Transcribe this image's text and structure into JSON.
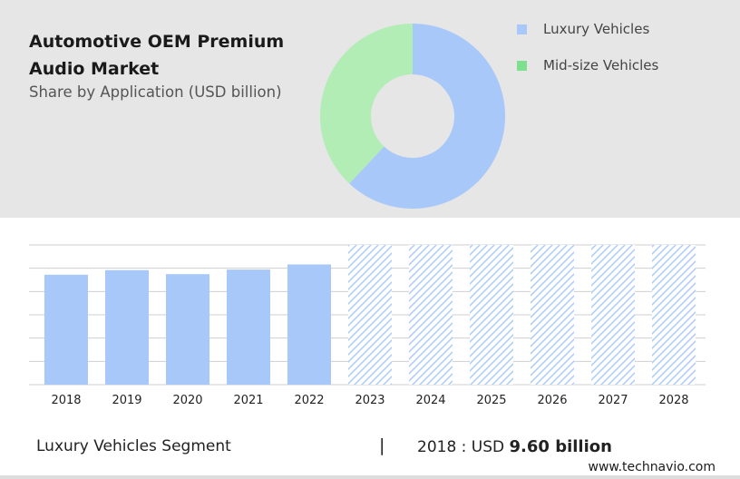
{
  "header": {
    "title": "Automotive OEM Premium Audio Market",
    "subtitle": "Share by Application (USD billion)"
  },
  "legend": [
    {
      "label": "Luxury Vehicles",
      "color": "#a8c8fa"
    },
    {
      "label": "Mid-size Vehicles",
      "color": "#7ee08e"
    }
  ],
  "footer": {
    "segment": "Luxury Vehicles Segment",
    "separator": "|",
    "year_label": "2018 : USD",
    "value": "9.60 billion",
    "site": "www.technavio.com"
  },
  "chart_data": [
    {
      "type": "pie",
      "donut": true,
      "labels": [
        "Luxury Vehicles",
        "Mid-size Vehicles"
      ],
      "values": [
        62,
        38
      ],
      "colors": [
        "#a8c8fa",
        "#b2edb5"
      ]
    },
    {
      "type": "bar",
      "categories": [
        "2018",
        "2019",
        "2020",
        "2021",
        "2022",
        "2023",
        "2024",
        "2025",
        "2026",
        "2027",
        "2028"
      ],
      "values": [
        9.6,
        10.0,
        9.65,
        10.05,
        10.5,
        null,
        null,
        null,
        null,
        null,
        null
      ],
      "forecast": [
        false,
        false,
        false,
        false,
        false,
        true,
        true,
        true,
        true,
        true,
        true
      ],
      "series": [
        {
          "values": [
            9.6,
            10.0,
            9.65,
            10.05,
            10.5,
            null,
            null,
            null,
            null,
            null,
            null
          ]
        }
      ],
      "ylim": [
        0,
        12.2
      ],
      "grid": true,
      "bar_color": "#a8c8fa",
      "forecast_color": "#a8c8fa"
    }
  ]
}
